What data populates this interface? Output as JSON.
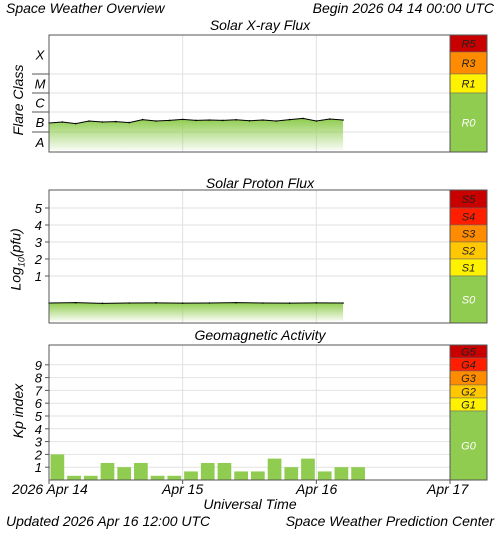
{
  "header": {
    "title": "Space Weather Overview",
    "begin": "Begin 2026 04 14 00:00 UTC"
  },
  "footer": {
    "updated": "Updated 2026 Apr 16 12:00 UTC",
    "source": "Space Weather Prediction Center"
  },
  "x_axis": {
    "label": "Universal Time",
    "ticks": [
      "2026 Apr 14",
      "Apr 15",
      "Apr 16",
      "Apr 17"
    ]
  },
  "colors": {
    "level0": "#8fcc4f",
    "level1": "#fff200",
    "level2": "#ffc800",
    "level3": "#ff8c00",
    "level4": "#ff1e00",
    "level5": "#c80000",
    "trace_fill": "#8fcc4f",
    "trace_line": "#000000"
  },
  "chart_data": [
    {
      "type": "area",
      "title": "Solar X-ray Flux",
      "ylabel": "Flare Class",
      "y_ticks": [
        "A",
        "B",
        "C",
        "M",
        "X"
      ],
      "x_range_days": [
        0,
        3
      ],
      "series": [
        {
          "x_days": [
            0.0,
            0.1,
            0.2,
            0.3,
            0.4,
            0.5,
            0.6,
            0.7,
            0.8,
            0.9,
            1.0,
            1.1,
            1.2,
            1.3,
            1.4,
            1.5,
            1.6,
            1.7,
            1.8,
            1.9,
            2.0,
            2.1,
            2.2
          ],
          "level_class": [
            1.45,
            1.5,
            1.42,
            1.55,
            1.5,
            1.52,
            1.47,
            1.62,
            1.55,
            1.58,
            1.63,
            1.58,
            1.6,
            1.58,
            1.61,
            1.56,
            1.6,
            1.55,
            1.62,
            1.68,
            1.55,
            1.65,
            1.6
          ]
        }
      ],
      "scale_bar": {
        "labels": [
          "R0",
          "R1",
          "R3",
          "R5"
        ],
        "level_keys": [
          "level0",
          "level1",
          "level3",
          "level5"
        ]
      }
    },
    {
      "type": "area",
      "title": "Solar Proton Flux",
      "ylabel": "Log10(pfu)",
      "y_ticks": [
        "1",
        "2",
        "3",
        "4",
        "5"
      ],
      "x_range_days": [
        0,
        3
      ],
      "series": [
        {
          "x_days": [
            0.0,
            0.2,
            0.4,
            0.6,
            0.8,
            1.0,
            1.2,
            1.4,
            1.6,
            1.8,
            2.0,
            2.2
          ],
          "log10_pfu": [
            -1.4,
            -1.42,
            -1.38,
            -1.4,
            -1.41,
            -1.39,
            -1.4,
            -1.42,
            -1.4,
            -1.39,
            -1.41,
            -1.4
          ]
        }
      ],
      "scale_bar": {
        "labels": [
          "S0",
          "S1",
          "S2",
          "S3",
          "S4",
          "S5"
        ],
        "level_keys": [
          "level0",
          "level1",
          "level2",
          "level3",
          "level4",
          "level5"
        ]
      }
    },
    {
      "type": "bar",
      "title": "Geomagnetic Activity",
      "ylabel": "Kp index",
      "y_ticks": [
        "1",
        "2",
        "3",
        "4",
        "5",
        "6",
        "7",
        "8",
        "9"
      ],
      "ylim": [
        0,
        10
      ],
      "interval_hours": 3,
      "values": [
        2.0,
        0.33,
        0.33,
        1.33,
        1.0,
        1.33,
        0.33,
        0.33,
        0.67,
        1.33,
        1.33,
        0.67,
        0.67,
        1.67,
        1.0,
        1.67,
        0.67,
        1.0,
        1.0
      ],
      "scale_bar": {
        "labels": [
          "G0",
          "G1",
          "G2",
          "G3",
          "G4",
          "G5"
        ],
        "level_keys": [
          "level0",
          "level1",
          "level2",
          "level3",
          "level4",
          "level5"
        ]
      }
    }
  ]
}
